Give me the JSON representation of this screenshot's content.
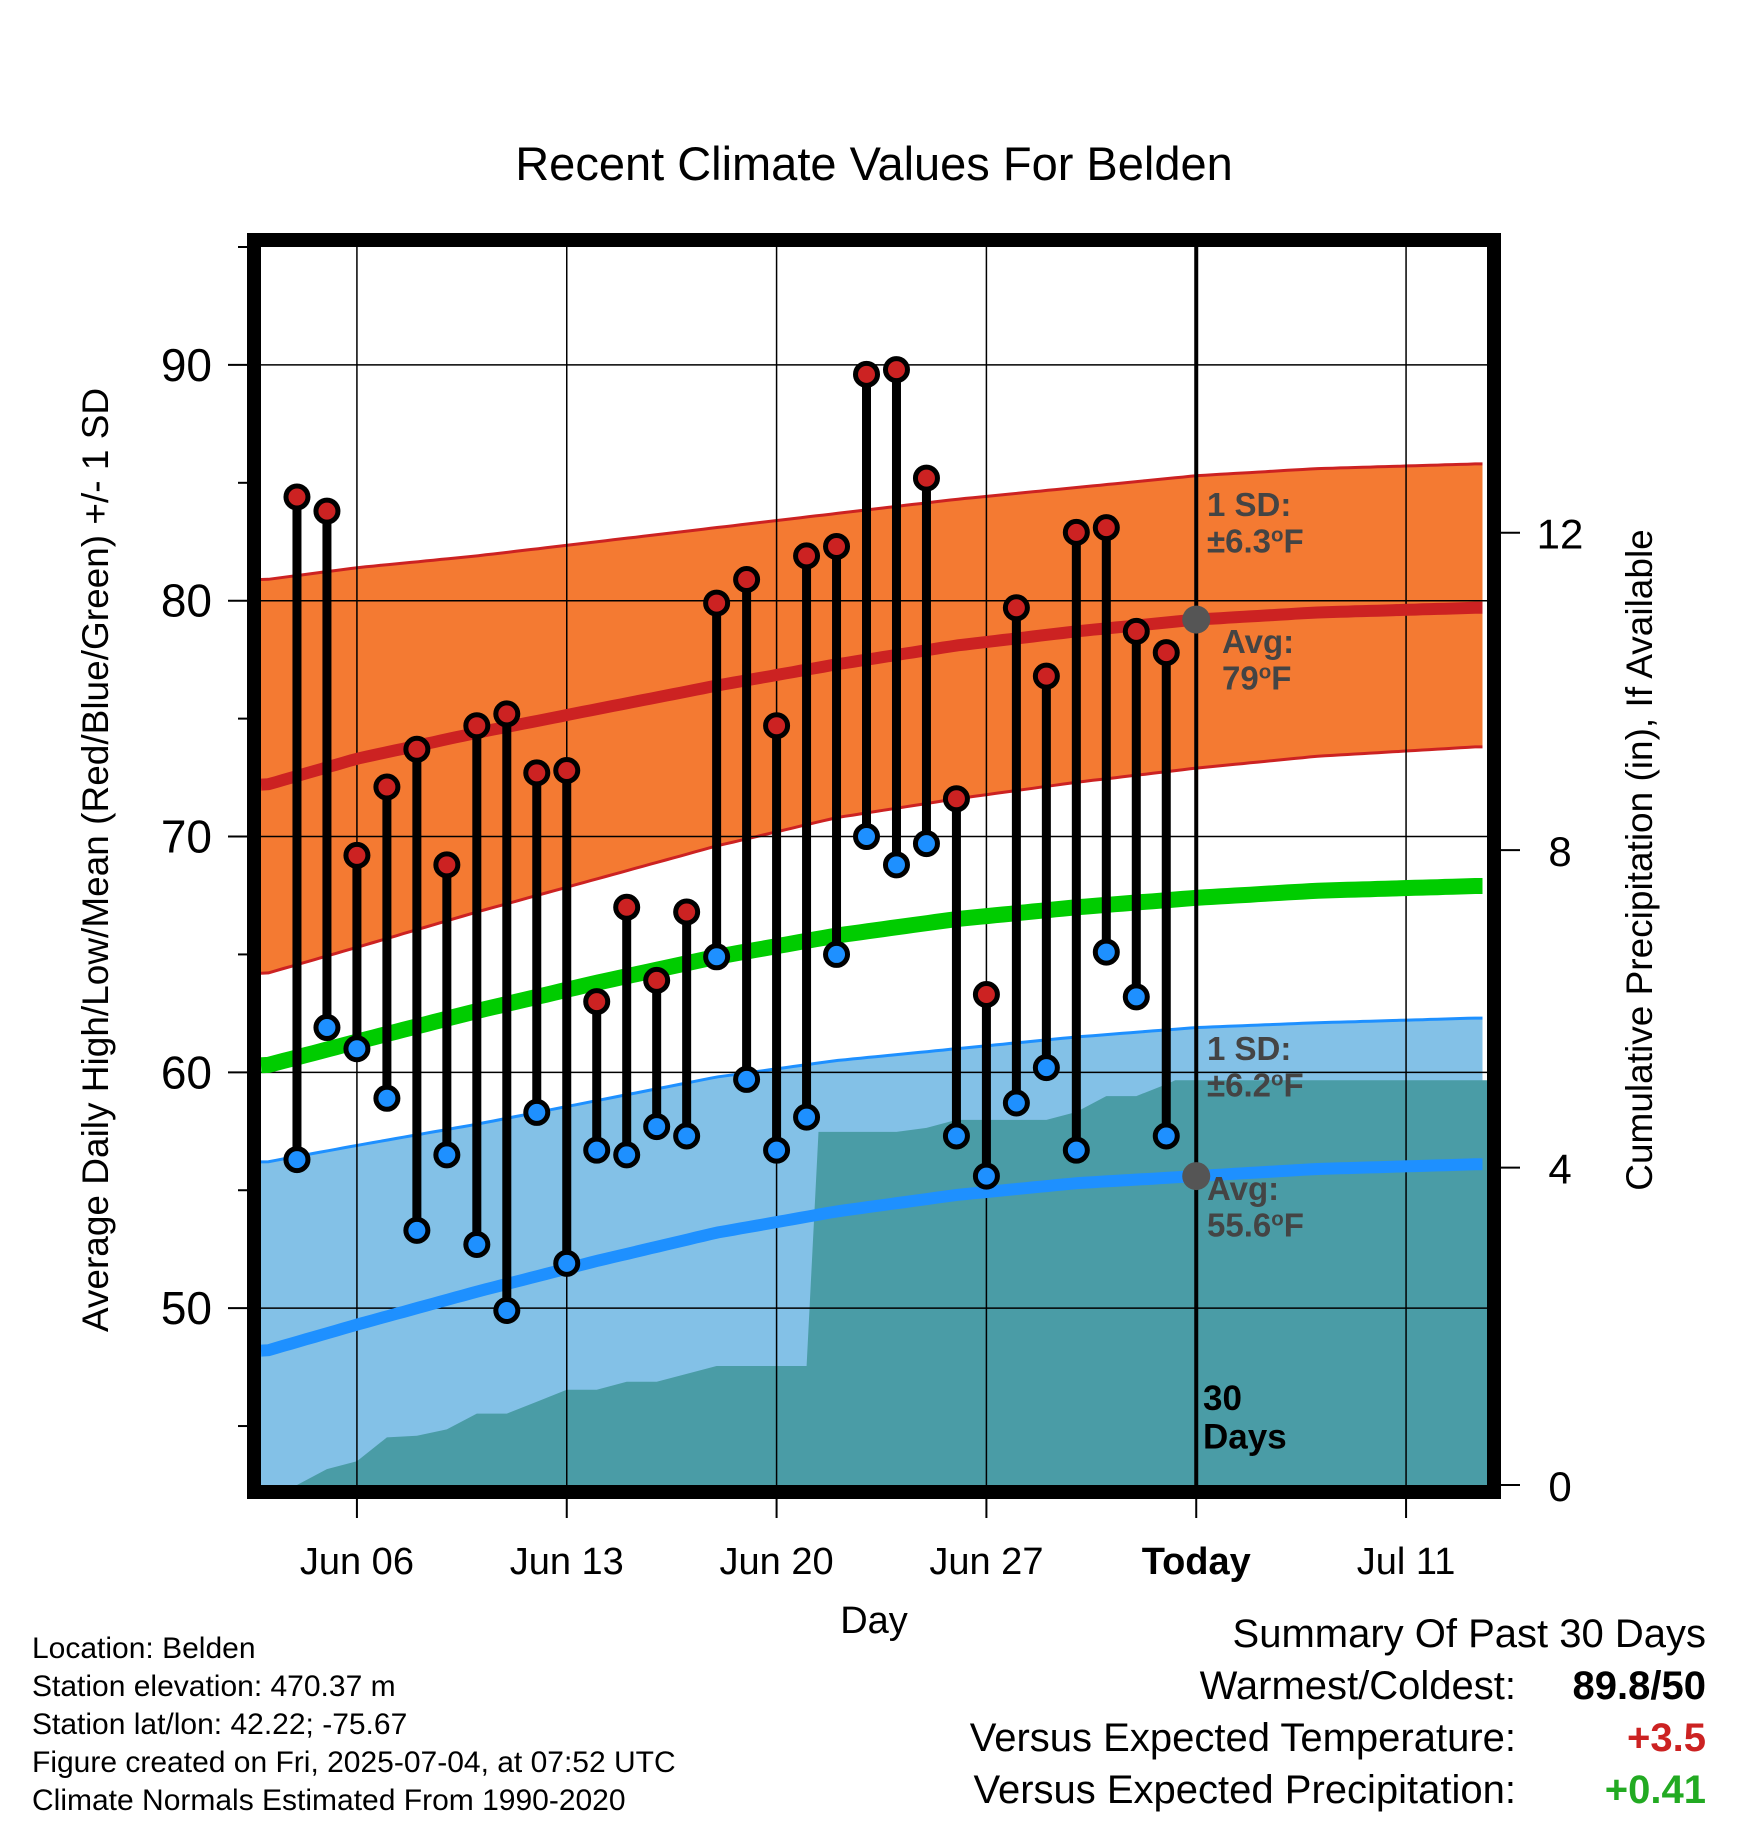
{
  "chart_data": {
    "type": "line",
    "title": "Recent Climate Values For Belden",
    "xlabel": "Day",
    "ylabel_left": "Average Daily High/Low/Mean (Red/Blue/Green) +/- 1 SD",
    "ylabel_right": "Cumulative Precipitation (in), If Available",
    "x_tick_labels": [
      "Jun 06",
      "Jun 13",
      "Jun 20",
      "Jun 27",
      "Today",
      "Jul 11"
    ],
    "x_tick_days": [
      6,
      13,
      20,
      27,
      34,
      41
    ],
    "xlim_days": [
      2.8,
      43.7
    ],
    "ylim_left": [
      42.5,
      95
    ],
    "left_ticks": [
      50,
      60,
      70,
      80,
      90
    ],
    "ylim_right": [
      0,
      15.6
    ],
    "right_ticks": [
      0,
      4,
      8,
      12
    ],
    "today_day": 34,
    "grid": true,
    "colors": {
      "high": "#cc2222",
      "low": "#1e90ff",
      "mean": "#00cc00",
      "high_band": "#f47a32",
      "low_band": "#83c1e7",
      "precip": "#4a9ca6",
      "today_marker": "#555555"
    },
    "days": [
      4,
      5,
      6,
      7,
      8,
      9,
      10,
      11,
      12,
      13,
      14,
      15,
      16,
      17,
      18,
      19,
      20,
      21,
      22,
      23,
      24,
      25,
      26,
      27,
      28,
      29,
      30,
      31,
      32,
      33
    ],
    "highs": [
      84.4,
      83.8,
      69.2,
      72.1,
      73.7,
      68.8,
      74.7,
      75.2,
      72.7,
      72.8,
      63.0,
      67.0,
      63.9,
      66.8,
      79.9,
      80.9,
      74.7,
      81.9,
      82.3,
      89.6,
      89.8,
      85.2,
      71.6,
      63.3,
      79.7,
      76.8,
      82.9,
      83.1,
      78.7,
      77.8
    ],
    "lows": [
      56.3,
      61.9,
      61.0,
      58.9,
      53.3,
      56.5,
      52.7,
      49.9,
      58.3,
      51.9,
      56.7,
      56.5,
      57.7,
      57.3,
      64.9,
      59.7,
      56.7,
      58.1,
      65.0,
      70.0,
      68.8,
      69.7,
      57.3,
      55.6,
      58.7,
      60.2,
      56.7,
      65.1,
      63.2,
      57.3
    ],
    "normals": {
      "day": [
        3,
        6,
        10,
        14,
        18,
        22,
        26,
        30,
        34,
        38,
        43.3
      ],
      "high_avg": [
        72.2,
        73.3,
        74.4,
        75.4,
        76.4,
        77.3,
        78.1,
        78.7,
        79.2,
        79.5,
        79.7
      ],
      "high_upper": [
        80.9,
        81.4,
        81.9,
        82.5,
        83.1,
        83.7,
        84.3,
        84.8,
        85.3,
        85.6,
        85.8
      ],
      "high_lower": [
        64.2,
        65.3,
        66.8,
        68.2,
        69.6,
        70.8,
        71.6,
        72.3,
        72.9,
        73.4,
        73.8
      ],
      "mean_avg": [
        60.3,
        61.3,
        62.6,
        63.8,
        64.9,
        65.8,
        66.5,
        67.0,
        67.4,
        67.7,
        67.9
      ],
      "low_avg": [
        48.2,
        49.3,
        50.7,
        52.0,
        53.2,
        54.1,
        54.8,
        55.3,
        55.6,
        55.9,
        56.1
      ],
      "low_upper": [
        56.2,
        56.9,
        57.8,
        58.8,
        59.8,
        60.5,
        61.0,
        61.5,
        61.9,
        62.1,
        62.3
      ],
      "low_lower": [
        41.5,
        42.3,
        43.6,
        44.9,
        46.0,
        47.1,
        48.0,
        48.7,
        49.2,
        49.5,
        49.8
      ]
    },
    "precip": {
      "day": [
        3,
        3.5,
        4,
        5,
        6,
        7,
        8,
        9,
        10,
        11,
        12,
        13,
        14,
        15,
        16,
        17,
        18,
        19,
        20,
        21,
        21.4,
        22,
        23,
        24,
        25,
        26,
        27,
        28,
        29,
        30,
        31,
        32,
        33,
        33.3,
        34,
        43.7
      ],
      "cumulative": [
        0,
        0,
        0,
        0.2,
        0.3,
        0.6,
        0.62,
        0.7,
        0.9,
        0.9,
        1.05,
        1.2,
        1.2,
        1.3,
        1.3,
        1.4,
        1.5,
        1.5,
        1.5,
        1.5,
        4.45,
        4.45,
        4.45,
        4.45,
        4.5,
        4.6,
        4.6,
        4.6,
        4.6,
        4.7,
        4.9,
        4.9,
        5.05,
        5.1,
        5.1,
        5.1
      ]
    },
    "annotations": {
      "high_sd_label": "1 SD:",
      "high_sd_value": "±6.3",
      "high_avg_label": "Avg:",
      "high_avg_value": "79",
      "low_sd_label": "1 SD:",
      "low_sd_value": "±6.2",
      "low_avg_label": "Avg:",
      "low_avg_value": "55.6",
      "degree_mark": "o",
      "unit": "F",
      "window_number": "30",
      "window_unit": "Days"
    }
  },
  "station_info": [
    "Location: Belden",
    "Station elevation: 470.37 m",
    "Station lat/lon: 42.22; -75.67",
    "Figure created on Fri, 2025-07-04, at 07:52 UTC",
    "Climate Normals Estimated From 1990-2020"
  ],
  "summary": {
    "title": "Summary Of Past 30 Days",
    "warmest_coldest_label": "Warmest/Coldest:",
    "warmest_coldest_value": "89.8/50",
    "temp_label": "Versus Expected Temperature:",
    "temp_value": "+3.5",
    "precip_label": "Versus Expected Precipitation:",
    "precip_value": "+0.41"
  }
}
